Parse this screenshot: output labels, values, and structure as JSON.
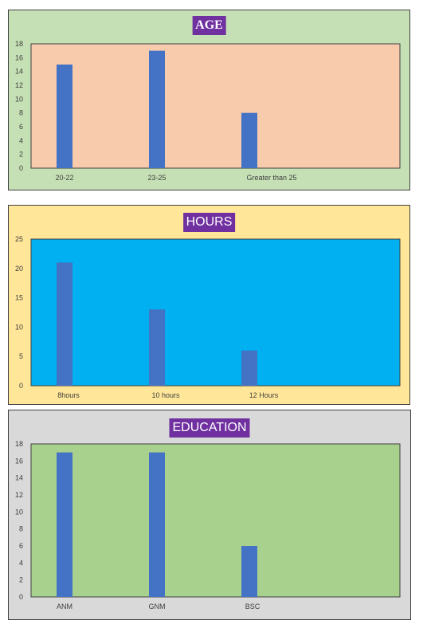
{
  "colors": {
    "bar": "#4472c4",
    "title_bg": "#7030a0"
  },
  "chart_data": [
    {
      "type": "bar",
      "title": "AGE",
      "categories": [
        "20-22",
        "23-25",
        "Greater than 25"
      ],
      "values": [
        15,
        17,
        8
      ],
      "xlabel": "",
      "ylabel": "",
      "ylim": [
        0,
        18
      ],
      "yticks": [
        0,
        2,
        4,
        6,
        8,
        10,
        12,
        14,
        16,
        18
      ],
      "panel_color": "#c5e0b4",
      "plot_color": "#f8cbad",
      "legend": "none",
      "grid": false
    },
    {
      "type": "bar",
      "title": "HOURS",
      "categories": [
        "8hours",
        "10 hours",
        "12 Hours"
      ],
      "values": [
        21,
        13,
        6
      ],
      "xlabel": "",
      "ylabel": "",
      "ylim": [
        0,
        25
      ],
      "yticks": [
        0,
        5,
        10,
        15,
        20,
        25
      ],
      "panel_color": "#ffe699",
      "plot_color": "#00b0f0",
      "legend": "none",
      "grid": false
    },
    {
      "type": "bar",
      "title": "EDUCATION",
      "categories": [
        "ANM",
        "GNM",
        "BSC"
      ],
      "values": [
        17,
        17,
        6
      ],
      "xlabel": "",
      "ylabel": "",
      "ylim": [
        0,
        18
      ],
      "yticks": [
        0,
        2,
        4,
        6,
        8,
        10,
        12,
        14,
        16,
        18
      ],
      "panel_color": "#d9d9d9",
      "plot_color": "#a9d18e",
      "legend": "none",
      "grid": false
    }
  ]
}
